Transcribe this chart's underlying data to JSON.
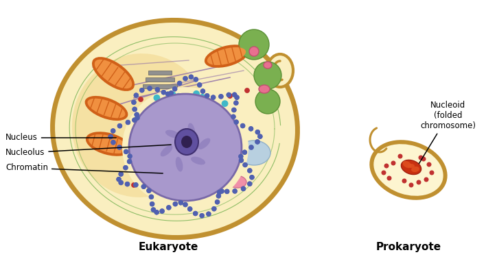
{
  "title_eukaryote": "Eukaryote",
  "title_prokaryote": "Prokaryote",
  "label_nucleus": "Nucleus",
  "label_nucleolus": "Nucleolus",
  "label_chromatin": "Chromatin",
  "label_nucleoid": "Nucleoid\n(folded\nchromosome)",
  "bg_color": "#ffffff",
  "cell_outer_color": "#c09030",
  "cell_fill": "#faefc0",
  "mito_outer": "#d06018",
  "mito_inner": "#f09040",
  "green1": "#7ab050",
  "green2": "#5a9035",
  "pink1": "#e87090",
  "pink2": "#f0a0b8",
  "blue_vacuole": "#b8d0e0",
  "nucleus_fill": "#a898cc",
  "nucleus_edge": "#7868a8",
  "er_dot_color": "#5060b0",
  "nucleolus_fill": "#6050a0",
  "cyan_dot": "#40b8c8",
  "red_dot": "#c03030",
  "gray_fill": "#909090",
  "purple_line": "#9070a8",
  "green_line": "#60a840",
  "nucleoid_fill": "#c83010",
  "nucleoid_light": "#e05020"
}
